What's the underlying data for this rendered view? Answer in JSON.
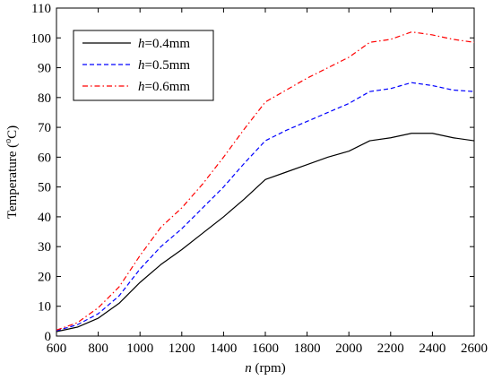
{
  "chart_data": {
    "type": "line",
    "xlabel": {
      "var": "n",
      "unit": " (rpm)"
    },
    "ylabel": {
      "pre": "Temperature (",
      "sup": "o",
      "post": "C)"
    },
    "xlim": [
      600,
      2600
    ],
    "ylim": [
      0,
      110
    ],
    "x_ticks": [
      600,
      800,
      1000,
      1200,
      1400,
      1600,
      1800,
      2000,
      2200,
      2400,
      2600
    ],
    "y_ticks": [
      0,
      10,
      20,
      30,
      40,
      50,
      60,
      70,
      80,
      90,
      100,
      110
    ],
    "grid": false,
    "legend_position": "top-left",
    "x": [
      600,
      700,
      800,
      900,
      1000,
      1100,
      1200,
      1300,
      1400,
      1500,
      1600,
      1700,
      1800,
      1900,
      2000,
      2100,
      2200,
      2300,
      2400,
      2500,
      2600
    ],
    "series": [
      {
        "label_var": "h",
        "label_rest": "=0.4mm",
        "color": "#000000",
        "dash": "solid",
        "values": [
          1.5,
          3.0,
          6.0,
          11.0,
          18.0,
          24.0,
          29.0,
          34.5,
          40.0,
          46.0,
          52.5,
          55.0,
          57.5,
          60.0,
          62.0,
          65.5,
          66.5,
          68.0,
          68.0,
          66.5,
          65.5
        ]
      },
      {
        "label_var": "h",
        "label_rest": "=0.5mm",
        "color": "#0000ff",
        "dash": "dashed",
        "values": [
          1.8,
          3.8,
          7.5,
          13.5,
          22.5,
          30.0,
          36.0,
          43.0,
          50.0,
          58.0,
          65.5,
          69.0,
          72.0,
          75.0,
          78.0,
          82.0,
          83.0,
          85.0,
          84.0,
          82.5,
          82.0
        ]
      },
      {
        "label_var": "h",
        "label_rest": "=0.6mm",
        "color": "#ff0000",
        "dash": "dashdot",
        "values": [
          2.0,
          4.5,
          9.5,
          16.5,
          27.0,
          36.5,
          43.0,
          51.0,
          60.0,
          69.5,
          78.5,
          82.5,
          86.5,
          90.0,
          93.5,
          98.5,
          99.5,
          102.0,
          101.0,
          99.5,
          98.5
        ]
      }
    ]
  }
}
